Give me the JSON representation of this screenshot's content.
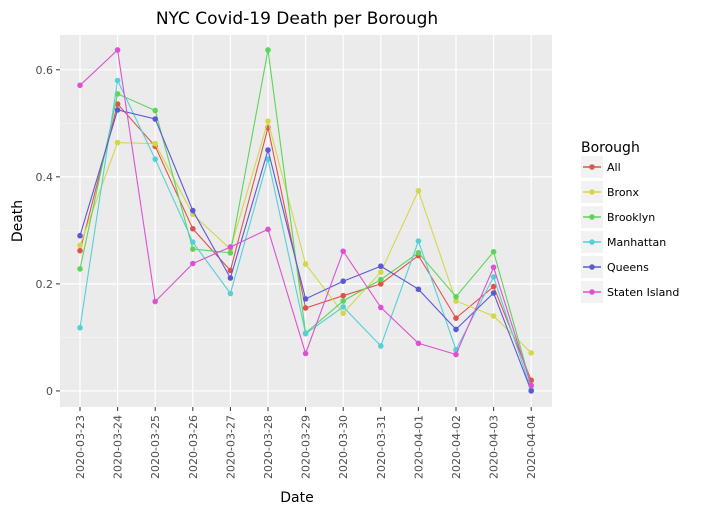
{
  "chart_data": {
    "type": "line",
    "title": "NYC Covid-19 Death per Borough",
    "xlabel": "Date",
    "ylabel": "Death",
    "ylim": [
      -0.03,
      0.665
    ],
    "yticks": [
      0,
      0.2,
      0.4,
      0.6
    ],
    "ytick_labels": [
      "0",
      "0.2",
      "0.4",
      "0.6"
    ],
    "grid": true,
    "legend_title": "Borough",
    "legend_position": "right",
    "x": [
      "2020-03-23",
      "2020-03-24",
      "2020-03-25",
      "2020-03-26",
      "2020-03-27",
      "2020-03-28",
      "2020-03-29",
      "2020-03-30",
      "2020-03-31",
      "2020-04-01",
      "2020-04-02",
      "2020-04-03",
      "2020-04-04"
    ],
    "series": [
      {
        "name": "All",
        "color": "#e0534a",
        "values": [
          0.262,
          0.536,
          0.457,
          0.303,
          0.225,
          0.492,
          0.155,
          0.178,
          0.2,
          0.253,
          0.136,
          0.195,
          0.02
        ]
      },
      {
        "name": "Bronx",
        "color": "#d2d84a",
        "values": [
          0.272,
          0.464,
          0.462,
          0.33,
          0.265,
          0.504,
          0.237,
          0.145,
          0.222,
          0.374,
          0.168,
          0.14,
          0.071
        ]
      },
      {
        "name": "Brooklyn",
        "color": "#5dd45a",
        "values": [
          0.228,
          0.555,
          0.524,
          0.265,
          0.258,
          0.637,
          0.108,
          0.168,
          0.208,
          0.258,
          0.176,
          0.26,
          0.01
        ]
      },
      {
        "name": "Manhattan",
        "color": "#55d0d4",
        "values": [
          0.118,
          0.58,
          0.433,
          0.278,
          0.182,
          0.433,
          0.107,
          0.157,
          0.084,
          0.28,
          0.077,
          0.213,
          0.002
        ]
      },
      {
        "name": "Queens",
        "color": "#5b59d6",
        "values": [
          0.29,
          0.525,
          0.508,
          0.337,
          0.211,
          0.45,
          0.172,
          0.205,
          0.233,
          0.19,
          0.115,
          0.183,
          0.0
        ]
      },
      {
        "name": "Staten Island",
        "color": "#dc52d2",
        "values": [
          0.571,
          0.637,
          0.167,
          0.238,
          0.269,
          0.302,
          0.07,
          0.261,
          0.156,
          0.089,
          0.068,
          0.231,
          0.01
        ]
      }
    ]
  },
  "colors": {
    "panel_background": "#ebebeb",
    "grid_major": "#ffffff",
    "axis_text": "#4d4d4d",
    "title_text": "#000000"
  }
}
